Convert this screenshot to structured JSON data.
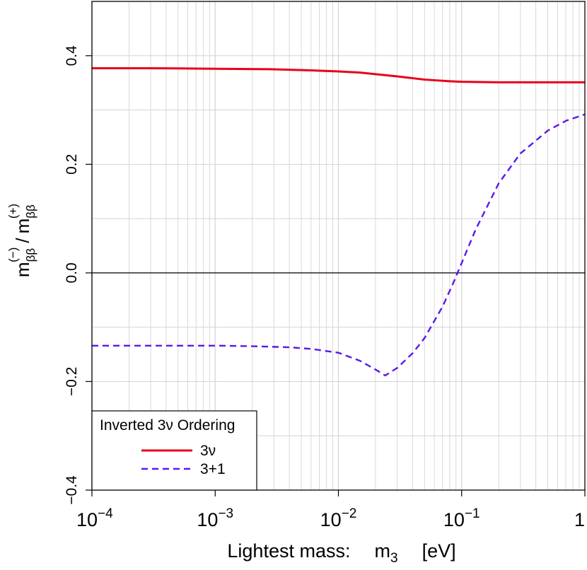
{
  "chart_data": {
    "type": "line",
    "x_scale": "log",
    "xlim": [
      0.0001,
      1
    ],
    "ylim": [
      -0.4,
      0.5
    ],
    "grid": true,
    "xlabel": {
      "prefix": "Lightest mass:",
      "symbol_main": "m",
      "symbol_sub": "3",
      "unit": "[eV]"
    },
    "ylabel": {
      "num_main": "m",
      "num_sub": "ββ",
      "num_sup": "(−)",
      "separator": "/",
      "den_main": "m",
      "den_sub": "ββ",
      "den_sup": "(+)"
    },
    "x_ticks": [
      {
        "value": 0.0001,
        "base": "10",
        "exp": "−4"
      },
      {
        "value": 0.001,
        "base": "10",
        "exp": "−3"
      },
      {
        "value": 0.01,
        "base": "10",
        "exp": "−2"
      },
      {
        "value": 0.1,
        "base": "10",
        "exp": "−1"
      },
      {
        "value": 1,
        "base": "1",
        "exp": ""
      }
    ],
    "y_ticks": [
      {
        "value": -0.4,
        "label": "−0.4"
      },
      {
        "value": -0.2,
        "label": "−0.2"
      },
      {
        "value": 0.0,
        "label": "0.0"
      },
      {
        "value": 0.2,
        "label": "0.2"
      },
      {
        "value": 0.4,
        "label": "0.4"
      }
    ],
    "reference_line_y": 0.0,
    "legend": {
      "title": "Inverted 3ν Ordering",
      "position": "bottom-left",
      "entries": [
        {
          "label": "3ν",
          "color": "#e8001c",
          "dash": "solid"
        },
        {
          "label": "3+1",
          "color": "#5a18f0",
          "dash": "dashed"
        }
      ]
    },
    "series": [
      {
        "name": "3ν",
        "color": "#e8001c",
        "dash": "solid",
        "x": [
          0.0001,
          0.0003,
          0.001,
          0.003,
          0.006,
          0.01,
          0.015,
          0.02,
          0.03,
          0.05,
          0.08,
          0.1,
          0.2,
          0.5,
          1
        ],
        "y": [
          0.377,
          0.377,
          0.376,
          0.375,
          0.373,
          0.371,
          0.369,
          0.366,
          0.362,
          0.356,
          0.353,
          0.352,
          0.351,
          0.351,
          0.351
        ]
      },
      {
        "name": "3+1",
        "color": "#5a18f0",
        "dash": "dashed",
        "x": [
          0.0001,
          0.0003,
          0.001,
          0.002,
          0.004,
          0.006,
          0.01,
          0.015,
          0.02,
          0.024,
          0.03,
          0.04,
          0.05,
          0.07,
          0.085,
          0.1,
          0.13,
          0.2,
          0.3,
          0.5,
          0.7,
          1
        ],
        "y": [
          -0.134,
          -0.134,
          -0.134,
          -0.135,
          -0.137,
          -0.14,
          -0.147,
          -0.162,
          -0.178,
          -0.189,
          -0.175,
          -0.148,
          -0.12,
          -0.062,
          -0.02,
          0.018,
          0.08,
          0.165,
          0.22,
          0.262,
          0.28,
          0.292
        ]
      }
    ]
  }
}
